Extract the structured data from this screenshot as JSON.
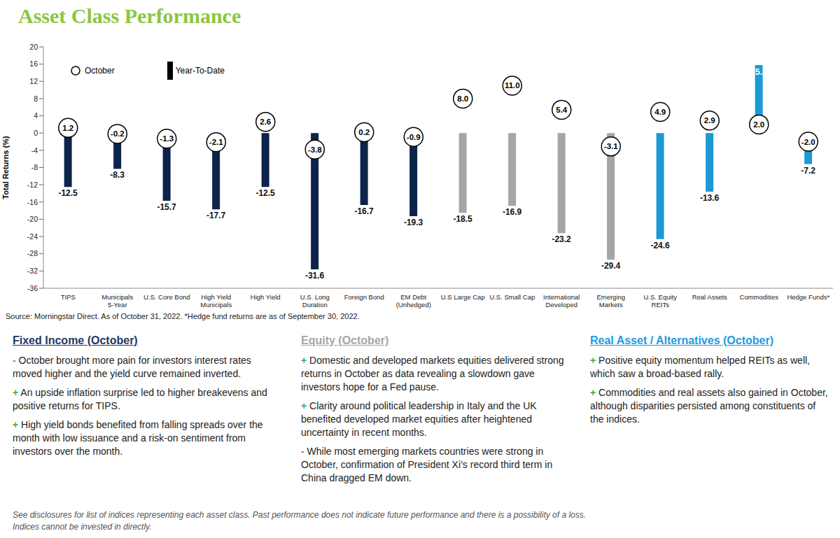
{
  "chart_data": {
    "type": "bar",
    "title": "Asset Class Performance",
    "y_label": "Total Returns (%)",
    "categories": [
      "TIPS",
      "Municipals 5-Year",
      "U.S. Core Bond",
      "High Yield Municipals",
      "High Yield",
      "U.S. Long Duration",
      "Foreign Bond",
      "EM Debt (Unhedged)",
      "U.S Large Cap",
      "U.S. Small Cap",
      "International Developed",
      "Emerging Markets",
      "U.S. Equity REITs",
      "Real Assets",
      "Commodities",
      "Hedge Funds*"
    ],
    "series": [
      {
        "name": "October",
        "type": "scatter",
        "marker": "circle",
        "color": "#000000",
        "values": [
          1.2,
          -0.2,
          -1.3,
          -2.1,
          2.6,
          -3.8,
          0.2,
          -0.9,
          8.0,
          11.0,
          5.4,
          -3.1,
          4.9,
          2.9,
          2.0,
          -2.0
        ],
        "value_labels": [
          "1.2",
          "-0.2",
          "-1.3",
          "-2.1",
          "2.6",
          "-3.8",
          "0.2",
          "-0.9",
          "8.0",
          "11.0",
          "5.4",
          "-3.1",
          "4.9",
          "2.9",
          "2.0",
          "-2.0"
        ]
      },
      {
        "name": "Year-To-Date",
        "type": "bar",
        "colors": [
          "#0c234b",
          "#0c234b",
          "#0c234b",
          "#0c234b",
          "#0c234b",
          "#0c234b",
          "#0c234b",
          "#0c234b",
          "#a5a5a5",
          "#a5a5a5",
          "#a5a5a5",
          "#a5a5a5",
          "#1b9ad6",
          "#1b9ad6",
          "#1b9ad6",
          "#1b9ad6"
        ],
        "values": [
          -12.5,
          -8.3,
          -15.7,
          -17.7,
          -12.5,
          -31.6,
          -16.7,
          -19.3,
          -18.5,
          -16.9,
          -23.2,
          -29.4,
          -24.6,
          -13.6,
          15.8,
          -7.2
        ]
      }
    ],
    "ylim": [
      -36,
      20
    ],
    "yticks": [
      -36,
      -32,
      -28,
      -24,
      -20,
      -16,
      -12,
      -8,
      -4,
      0,
      4,
      8,
      12,
      16,
      20
    ],
    "grid": false,
    "legend": "upper left",
    "data_labels": true
  },
  "source": "Source: Morningstar Direct. As of October 31, 2022. *Hedge fund returns are as of September 30, 2022.",
  "commentary": [
    {
      "heading": "Fixed Income (October)",
      "bullets": [
        {
          "sign": "-",
          "text": "October brought more pain for investors interest rates moved higher and the yield curve remained inverted."
        },
        {
          "sign": "+",
          "text": "An upside inflation surprise led to higher breakevens and positive returns for TIPS."
        },
        {
          "sign": "+",
          "text": "High yield bonds benefited from falling spreads over the month with low issuance and a risk-on sentiment from investors over the month."
        }
      ]
    },
    {
      "heading": "Equity (October)",
      "bullets": [
        {
          "sign": "+",
          "text": "Domestic and developed markets equities delivered strong returns in October as data revealing a slowdown gave investors hope for a Fed pause."
        },
        {
          "sign": "+",
          "text": "Clarity around political leadership in Italy and the UK benefited developed market equities after heightened uncertainty in recent months."
        },
        {
          "sign": "-",
          "text": "While most emerging markets countries were strong in October, confirmation of President Xi’s record third term in China dragged EM down."
        }
      ]
    },
    {
      "heading": "Real Asset / Alternatives (October)",
      "bullets": [
        {
          "sign": "+",
          "text": "Positive equity momentum helped REITs as well, which saw a broad-based rally."
        },
        {
          "sign": "+",
          "text": "Commodities and real assets also gained in October, although disparities persisted among constituents of the indices."
        }
      ]
    }
  ],
  "disclosure": [
    "See disclosures for list of indices representing each asset class. Past performance does not indicate future performance and there is a possibility of a loss.",
    "Indices cannot be invested in directly."
  ]
}
